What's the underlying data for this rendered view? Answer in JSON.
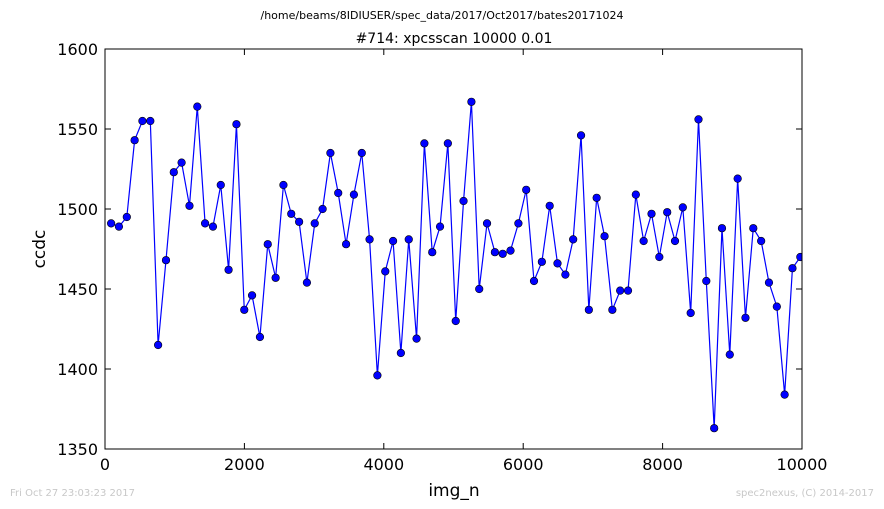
{
  "footer": {
    "left": "Fri Oct 27 23:03:23 2017",
    "right": "spec2nexus, (C) 2014-2017"
  },
  "chart_data": {
    "type": "line",
    "suptitle": "/home/beams/8IDIUSER/spec_data/2017/Oct2017/bates20171024",
    "title": "#714: xpcsscan 10000 0.01",
    "xlabel": "img_n",
    "ylabel": "ccdc",
    "xlim": [
      0,
      10000
    ],
    "ylim": [
      1350,
      1600
    ],
    "xticks": [
      0,
      2000,
      4000,
      6000,
      8000,
      10000
    ],
    "yticks": [
      1350,
      1400,
      1450,
      1500,
      1550,
      1600
    ],
    "grid": false,
    "legend": false,
    "marker": "circle",
    "line_color": "#0000ff",
    "marker_color": "#0000ff",
    "series": [
      {
        "x": [
          88,
          200,
          313,
          425,
          537,
          650,
          762,
          875,
          987,
          1099,
          1212,
          1324,
          1436,
          1549,
          1661,
          1773,
          1886,
          1998,
          2110,
          2223,
          2335,
          2448,
          2560,
          2672,
          2785,
          2897,
          3009,
          3122,
          3234,
          3346,
          3459,
          3571,
          3684,
          3796,
          3908,
          4021,
          4133,
          4245,
          4358,
          4470,
          4582,
          4695,
          4807,
          4919,
          5032,
          5144,
          5257,
          5369,
          5481,
          5594,
          5706,
          5818,
          5931,
          6043,
          6155,
          6268,
          6380,
          6492,
          6605,
          6717,
          6830,
          6942,
          7054,
          7167,
          7279,
          7391,
          7504,
          7616,
          7728,
          7841,
          7953,
          8066,
          8178,
          8290,
          8403,
          8515,
          8627,
          8740,
          8852,
          8964,
          9077,
          9189,
          9301,
          9414,
          9526,
          9639,
          9751,
          9863,
          9976
        ],
        "values": [
          1491,
          1489,
          1495,
          1543,
          1555,
          1555,
          1415,
          1468,
          1523,
          1529,
          1502,
          1564,
          1491,
          1489,
          1515,
          1462,
          1553,
          1437,
          1446,
          1420,
          1478,
          1457,
          1515,
          1497,
          1492,
          1454,
          1491,
          1500,
          1535,
          1510,
          1478,
          1509,
          1535,
          1481,
          1396,
          1461,
          1480,
          1410,
          1481,
          1419,
          1541,
          1473,
          1489,
          1541,
          1430,
          1505,
          1567,
          1450,
          1491,
          1473,
          1472,
          1474,
          1491,
          1512,
          1455,
          1467,
          1502,
          1466,
          1459,
          1481,
          1546,
          1437,
          1507,
          1483,
          1437,
          1449,
          1449,
          1509,
          1480,
          1497,
          1470,
          1498,
          1480,
          1501,
          1435,
          1556,
          1455,
          1363,
          1488,
          1409,
          1519,
          1432,
          1488,
          1480,
          1454,
          1439,
          1384,
          1463,
          1470
        ]
      }
    ]
  }
}
